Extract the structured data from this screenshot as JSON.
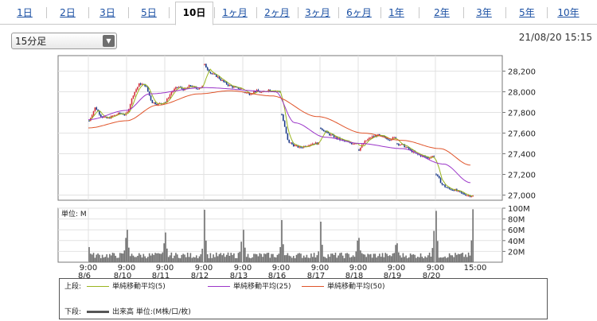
{
  "tabs": [
    "1日",
    "2日",
    "3日",
    "5日",
    "10日",
    "1ヶ月",
    "2ヶ月",
    "3ヶ月",
    "6ヶ月",
    "1年",
    "2年",
    "3年",
    "5年",
    "10年"
  ],
  "active_tab": "10日",
  "interval_select": "15分足",
  "timestamp": "21/08/20 15:15",
  "colors": {
    "price_up": "#d3303a",
    "price_down": "#1b3a8a",
    "ma5": "#9ab51e",
    "ma25": "#9b35c9",
    "ma50": "#e0542a",
    "volume": "#707070",
    "tab_link": "#1a4fa3"
  },
  "legend": {
    "upper_label": "上段:",
    "ma5_label": "単純移動平均(5)",
    "ma25_label": "単純移動平均(25)",
    "ma50_label": "単純移動平均(50)",
    "lower_label": "下段:",
    "volume_label": "出来高 単位:(M株/口/枚)"
  },
  "chart_data": [
    {
      "type": "line",
      "panel": "price",
      "ylim": [
        26950,
        28350
      ],
      "yticks": [
        "28,200",
        "28,000",
        "27,800",
        "27,600",
        "27,400",
        "27,200",
        "27,000"
      ],
      "ytick_values": [
        28200,
        28000,
        27800,
        27600,
        27400,
        27200,
        27000
      ],
      "x_session_labels": [
        {
          "time": "9:00",
          "date": "8/6"
        },
        {
          "time": "9:00",
          "date": "8/10"
        },
        {
          "time": "9:00",
          "date": "8/11"
        },
        {
          "time": "9:00",
          "date": "8/12"
        },
        {
          "time": "9:00",
          "date": "8/13"
        },
        {
          "time": "9:00",
          "date": "8/16"
        },
        {
          "time": "9:00",
          "date": "8/17"
        },
        {
          "time": "9:00",
          "date": "8/18"
        },
        {
          "time": "9:00",
          "date": "8/19"
        },
        {
          "time": "9:00",
          "date": "8/20"
        },
        {
          "time": "15:00",
          "date": ""
        }
      ],
      "sessions": [
        {
          "date": "8/6",
          "open": 27720,
          "close": 27780,
          "anchors": [
            27720,
            27850,
            27760,
            27740,
            27770,
            27790,
            27780
          ]
        },
        {
          "date": "8/10",
          "open": 27800,
          "close": 27900,
          "anchors": [
            27800,
            27980,
            28080,
            28060,
            27900,
            27880,
            27900
          ]
        },
        {
          "date": "8/11",
          "open": 27900,
          "close": 28050,
          "anchors": [
            27900,
            28000,
            28050,
            28020,
            28060,
            28030,
            28050
          ]
        },
        {
          "date": "8/12",
          "open": 28260,
          "close": 28030,
          "anchors": [
            28260,
            28180,
            28150,
            28100,
            28060,
            28040,
            28030
          ]
        },
        {
          "date": "8/13",
          "open": 28000,
          "close": 28000,
          "anchors": [
            28000,
            27980,
            28010,
            27990,
            28020,
            28010,
            28000
          ]
        },
        {
          "date": "8/16",
          "open": 27780,
          "close": 27500,
          "anchors": [
            27780,
            27520,
            27480,
            27460,
            27480,
            27500,
            27500
          ]
        },
        {
          "date": "8/17",
          "open": 27650,
          "close": 27510,
          "anchors": [
            27650,
            27600,
            27570,
            27540,
            27520,
            27500,
            27510
          ]
        },
        {
          "date": "8/18",
          "open": 27440,
          "close": 27560,
          "anchors": [
            27440,
            27520,
            27560,
            27580,
            27560,
            27540,
            27560
          ]
        },
        {
          "date": "8/19",
          "open": 27500,
          "close": 27380,
          "anchors": [
            27500,
            27480,
            27440,
            27400,
            27380,
            27360,
            27380
          ]
        },
        {
          "date": "8/20",
          "open": 27200,
          "close": 26990,
          "anchors": [
            27200,
            27100,
            27060,
            27050,
            27020,
            27000,
            26990
          ]
        }
      ],
      "series": [
        {
          "name": "単純移動平均(5)",
          "key": "ma5"
        },
        {
          "name": "単純移動平均(25)",
          "key": "ma25"
        },
        {
          "name": "単純移動平均(50)",
          "key": "ma50"
        }
      ],
      "ma25_anchors": [
        [
          0,
          27730
        ],
        [
          1,
          27820
        ],
        [
          1.6,
          27980
        ],
        [
          3,
          28040
        ],
        [
          4.9,
          28000
        ],
        [
          5.4,
          27700
        ],
        [
          6.2,
          27560
        ],
        [
          7.1,
          27500
        ],
        [
          8.2,
          27450
        ],
        [
          9.3,
          27300
        ],
        [
          10,
          27120
        ]
      ],
      "ma50_anchors": [
        [
          0,
          27650
        ],
        [
          1,
          27720
        ],
        [
          1.8,
          27870
        ],
        [
          2.9,
          27980
        ],
        [
          3.7,
          28010
        ],
        [
          4.8,
          27960
        ],
        [
          6,
          27760
        ],
        [
          7.2,
          27600
        ],
        [
          8.2,
          27530
        ],
        [
          9.2,
          27450
        ],
        [
          10,
          27290
        ]
      ]
    },
    {
      "type": "bar",
      "panel": "volume",
      "unit_label": "単位: M",
      "ylim": [
        0,
        100
      ],
      "yticks": [
        "100M",
        "80M",
        "60M",
        "40M",
        "20M"
      ],
      "ytick_values": [
        100,
        80,
        60,
        40,
        20
      ],
      "opening_peaks": [
        28,
        60,
        55,
        97,
        60,
        78,
        75,
        45,
        35,
        95
      ],
      "closing_peaks": [
        45,
        35,
        25,
        38,
        28,
        20,
        40,
        32,
        58,
        98
      ],
      "baseline": 12
    }
  ]
}
